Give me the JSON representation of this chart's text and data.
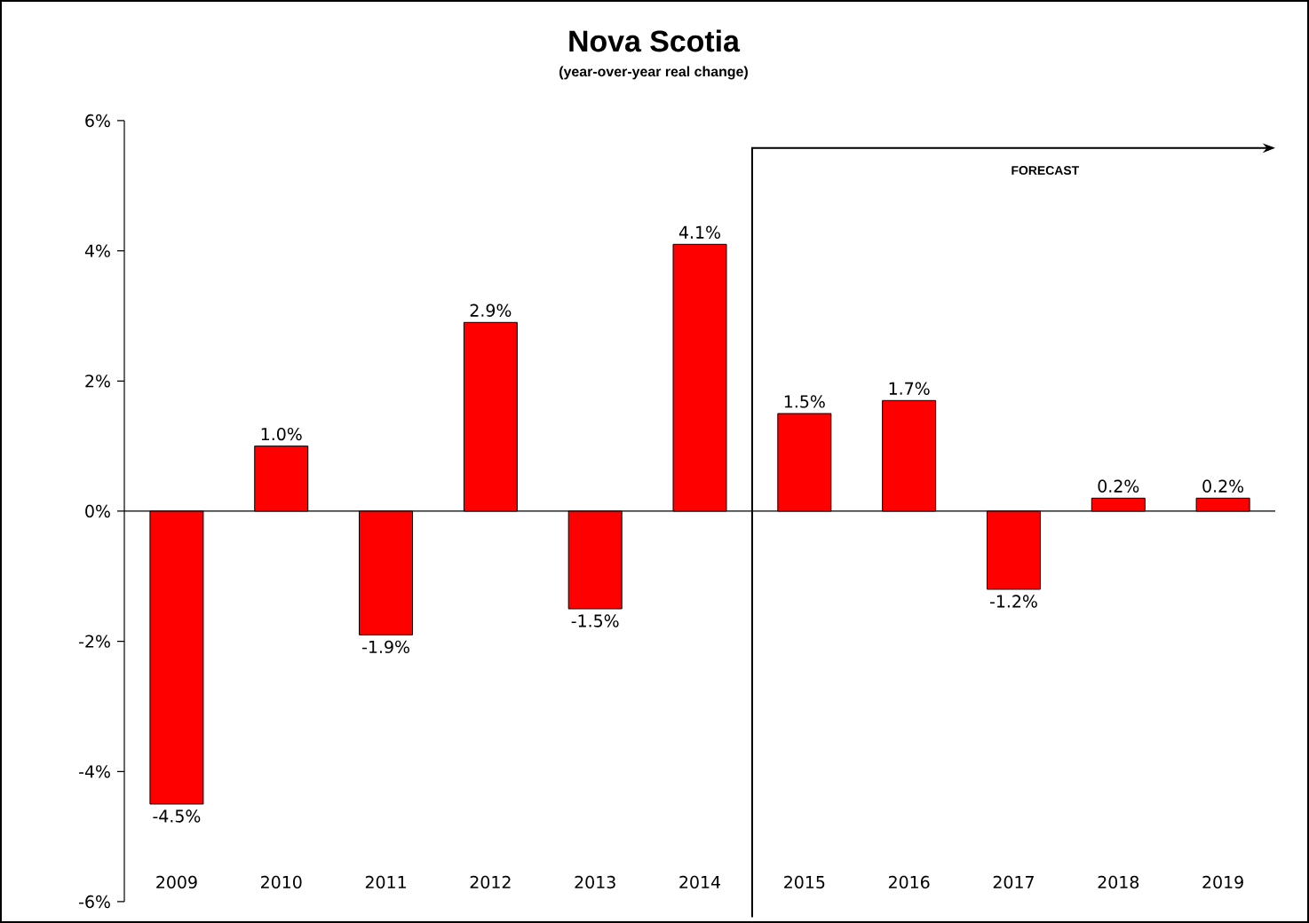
{
  "chart_data": {
    "type": "bar",
    "title": "Nova Scotia",
    "subtitle": "(year-over-year real change)",
    "categories": [
      "2009",
      "2010",
      "2011",
      "2012",
      "2013",
      "2014",
      "2015",
      "2016",
      "2017",
      "2018",
      "2019"
    ],
    "values": [
      -4.5,
      1.0,
      -1.9,
      2.9,
      -1.5,
      4.1,
      1.5,
      1.7,
      -1.2,
      0.2,
      0.2
    ],
    "value_labels": [
      "-4.5%",
      "1.0%",
      "-1.9%",
      "2.9%",
      "-1.5%",
      "4.1%",
      "1.5%",
      "1.7%",
      "-1.2%",
      "0.2%",
      "0.2%"
    ],
    "color": "#ff0000",
    "ylim": [
      -6,
      6
    ],
    "yticks": [
      {
        "value": -6,
        "label": "-6%"
      },
      {
        "value": -4,
        "label": "-4%"
      },
      {
        "value": -2,
        "label": "-2%"
      },
      {
        "value": 0,
        "label": "0%"
      },
      {
        "value": 2,
        "label": "2%"
      },
      {
        "value": 4,
        "label": "4%"
      },
      {
        "value": 6,
        "label": "6%"
      }
    ],
    "annotations": [
      "FORECAST"
    ]
  }
}
